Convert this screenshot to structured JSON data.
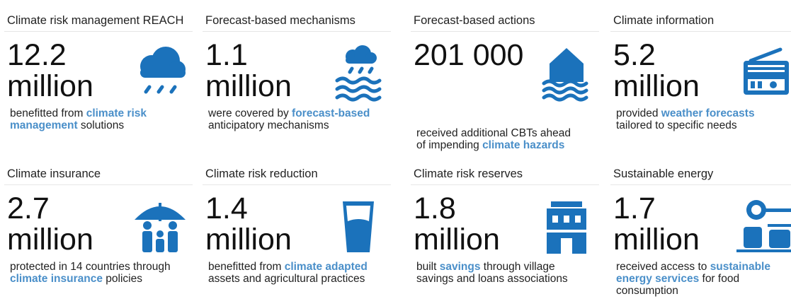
{
  "cards": [
    {
      "title": "Climate risk management REACH",
      "value": "12.2",
      "unit": "million",
      "description": [
        {
          "text": "benefitted from ",
          "strong": false
        },
        {
          "text": "climate risk management",
          "strong": true
        },
        {
          "text": " solutions",
          "strong": false
        }
      ]
    },
    {
      "title": "Forecast-based mechanisms",
      "value": "1.1",
      "unit": "million",
      "description": [
        {
          "text": "were covered by ",
          "strong": false
        },
        {
          "text": "forecast-based",
          "strong": true
        },
        {
          "text": " anticipatory mechanisms",
          "strong": false
        }
      ]
    },
    {
      "title": "Forecast-based actions",
      "value": "201 000",
      "description": [
        {
          "text": "received additional CBTs ahead of impending ",
          "strong": false
        },
        {
          "text": "climate hazards",
          "strong": true
        }
      ]
    },
    {
      "title": "Climate information",
      "value": "5.2",
      "unit": "million",
      "description": [
        {
          "text": "provided ",
          "strong": false
        },
        {
          "text": "weather forecasts",
          "strong": true
        },
        {
          "text": " tailored to specific needs",
          "strong": false
        }
      ]
    },
    {
      "title": "Climate insurance",
      "value": "2.7",
      "unit": "million",
      "description": [
        {
          "text": "protected in 14 countries through ",
          "strong": false
        },
        {
          "text": "climate insurance",
          "strong": true
        },
        {
          "text": " policies",
          "strong": false
        }
      ]
    },
    {
      "title": "Climate risk reduction",
      "value": "1.4",
      "unit": "million",
      "description": [
        {
          "text": "benefitted from ",
          "strong": false
        },
        {
          "text": "climate adapted",
          "strong": true
        },
        {
          "text": " assets and agricultural practices",
          "strong": false
        }
      ]
    },
    {
      "title": "Climate risk reserves",
      "value": "1.8",
      "unit": "million",
      "description": [
        {
          "text": "built ",
          "strong": false
        },
        {
          "text": "savings",
          "strong": true
        },
        {
          "text": " through village savings and loans associations",
          "strong": false
        }
      ]
    },
    {
      "title": "Sustainable energy",
      "value": "1.7",
      "unit": "million",
      "description": [
        {
          "text": "received access to ",
          "strong": false
        },
        {
          "text": "sustainable energy services",
          "strong": true
        },
        {
          "text": " for food consumption",
          "strong": false
        }
      ]
    }
  ]
}
